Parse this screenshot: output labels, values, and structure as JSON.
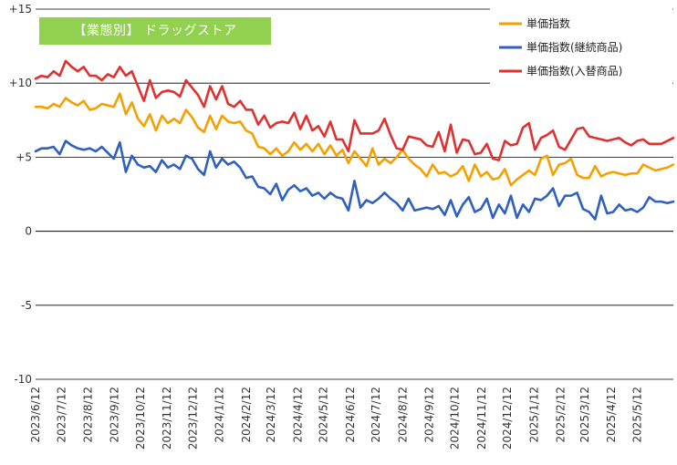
{
  "title": "【業態別】 ドラッグストア",
  "colors": {
    "background": "#ffffff",
    "grid": "#000000",
    "title_bg": "#92d050",
    "title_text": "#ffffff"
  },
  "chart_data": {
    "type": "line",
    "title": "【業態別】 ドラッグストア",
    "xlabel": "",
    "ylabel": "",
    "ylim": [
      -10,
      15
    ],
    "yticks": [
      -10,
      -5,
      0,
      5,
      10,
      15
    ],
    "ytick_labels": [
      "-10",
      "-5",
      "0",
      "+5",
      "+10",
      "+15"
    ],
    "grid": "horizontal",
    "legend_position": "top-right",
    "x_start": "2023/6/12",
    "x_step_days": 7,
    "x_tick_labels": [
      "2023/6/12",
      "2023/7/12",
      "2023/8/12",
      "2023/9/12",
      "2023/10/12",
      "2023/11/12",
      "2023/12/12",
      "2024/1/12",
      "2024/2/12",
      "2024/3/12",
      "2024/4/12",
      "2024/5/12",
      "2024/6/12",
      "2024/7/12",
      "2024/8/12",
      "2024/9/12",
      "2024/10/12",
      "2024/11/12",
      "2024/12/12",
      "2025/1/12",
      "2025/2/12",
      "2025/3/12",
      "2025/4/12",
      "2025/5/12"
    ],
    "series": [
      {
        "name": "単価指数",
        "color": "#f5a000",
        "values": [
          8.4,
          8.4,
          8.3,
          8.6,
          8.4,
          9.0,
          8.7,
          8.5,
          8.8,
          8.2,
          8.3,
          8.6,
          8.5,
          8.4,
          9.3,
          7.9,
          8.7,
          7.6,
          7.1,
          7.9,
          6.8,
          7.8,
          7.3,
          7.6,
          7.3,
          8.2,
          7.7,
          7.0,
          6.7,
          7.8,
          6.9,
          7.8,
          7.4,
          7.3,
          7.4,
          6.8,
          6.6,
          5.7,
          5.6,
          5.2,
          5.6,
          5.1,
          5.4,
          6.0,
          5.5,
          5.9,
          5.4,
          5.9,
          5.2,
          5.8,
          5.1,
          5.5,
          4.6,
          5.4,
          4.9,
          4.4,
          5.6,
          4.5,
          4.9,
          4.6,
          5.0,
          5.5,
          4.9,
          4.5,
          4.2,
          3.7,
          4.5,
          3.9,
          4.0,
          3.7,
          3.9,
          4.4,
          3.4,
          4.5,
          3.7,
          4.0,
          3.5,
          3.6,
          4.2,
          3.1,
          3.5,
          3.8,
          4.1,
          3.8,
          4.9,
          5.1,
          3.8,
          4.5,
          4.6,
          4.9,
          3.8,
          3.6,
          3.6,
          4.4,
          3.7,
          3.9,
          4.0,
          3.9,
          3.8,
          3.9,
          3.9,
          4.5,
          4.3,
          4.1,
          4.2,
          4.3,
          4.5
        ]
      },
      {
        "name": "単価指数(継続商品)",
        "color": "#2f5fbf",
        "values": [
          5.4,
          5.6,
          5.6,
          5.7,
          5.2,
          6.1,
          5.8,
          5.6,
          5.5,
          5.6,
          5.4,
          5.7,
          5.3,
          4.9,
          6.0,
          4.0,
          5.1,
          4.5,
          4.3,
          4.4,
          4.0,
          4.8,
          4.3,
          4.5,
          4.2,
          5.1,
          4.9,
          4.2,
          3.8,
          5.4,
          4.3,
          4.9,
          4.5,
          4.7,
          4.3,
          3.6,
          3.7,
          3.0,
          2.9,
          2.5,
          3.2,
          2.1,
          2.8,
          3.1,
          2.7,
          2.9,
          2.4,
          2.6,
          2.2,
          2.6,
          2.3,
          2.2,
          1.4,
          3.4,
          1.6,
          2.1,
          1.9,
          2.2,
          2.6,
          2.2,
          1.9,
          1.4,
          2.2,
          1.4,
          1.5,
          1.6,
          1.5,
          1.7,
          1.1,
          2.1,
          1.0,
          1.8,
          2.3,
          1.3,
          1.5,
          2.2,
          0.9,
          1.8,
          1.2,
          2.4,
          0.9,
          1.8,
          1.3,
          2.2,
          2.1,
          2.4,
          2.9,
          1.7,
          2.4,
          2.4,
          2.6,
          1.5,
          1.3,
          0.8,
          2.4,
          1.2,
          1.3,
          1.8,
          1.4,
          1.5,
          1.3,
          1.6,
          2.3,
          2.0,
          2.0,
          1.9,
          2.0
        ]
      },
      {
        "name": "単価指数(入替商品)",
        "color": "#e03131",
        "values": [
          10.3,
          10.5,
          10.4,
          10.8,
          10.5,
          11.5,
          11.1,
          10.8,
          11.1,
          10.5,
          10.5,
          10.2,
          10.6,
          10.4,
          11.1,
          10.5,
          10.8,
          9.8,
          8.8,
          10.2,
          9.0,
          9.4,
          9.5,
          9.4,
          9.1,
          10.2,
          9.7,
          9.2,
          8.4,
          9.8,
          8.9,
          9.8,
          8.6,
          8.4,
          8.8,
          8.2,
          8.2,
          7.2,
          7.8,
          7.0,
          7.3,
          7.4,
          7.3,
          8.0,
          6.9,
          7.8,
          6.8,
          7.1,
          6.4,
          7.4,
          6.2,
          6.2,
          5.4,
          7.5,
          6.6,
          6.6,
          6.6,
          6.8,
          7.6,
          6.5,
          5.6,
          5.5,
          6.4,
          6.3,
          6.2,
          5.8,
          5.7,
          6.7,
          5.4,
          7.2,
          5.3,
          6.2,
          6.1,
          5.2,
          5.3,
          5.9,
          4.9,
          4.8,
          6.1,
          5.8,
          5.9,
          7.0,
          7.3,
          5.5,
          6.3,
          6.5,
          6.8,
          5.7,
          5.5,
          6.2,
          6.9,
          7.0,
          6.4,
          6.3,
          6.2,
          6.1,
          6.2,
          6.3,
          6.0,
          5.8,
          6.1,
          6.2,
          5.9,
          5.9,
          5.9,
          6.1,
          6.3
        ]
      }
    ]
  }
}
